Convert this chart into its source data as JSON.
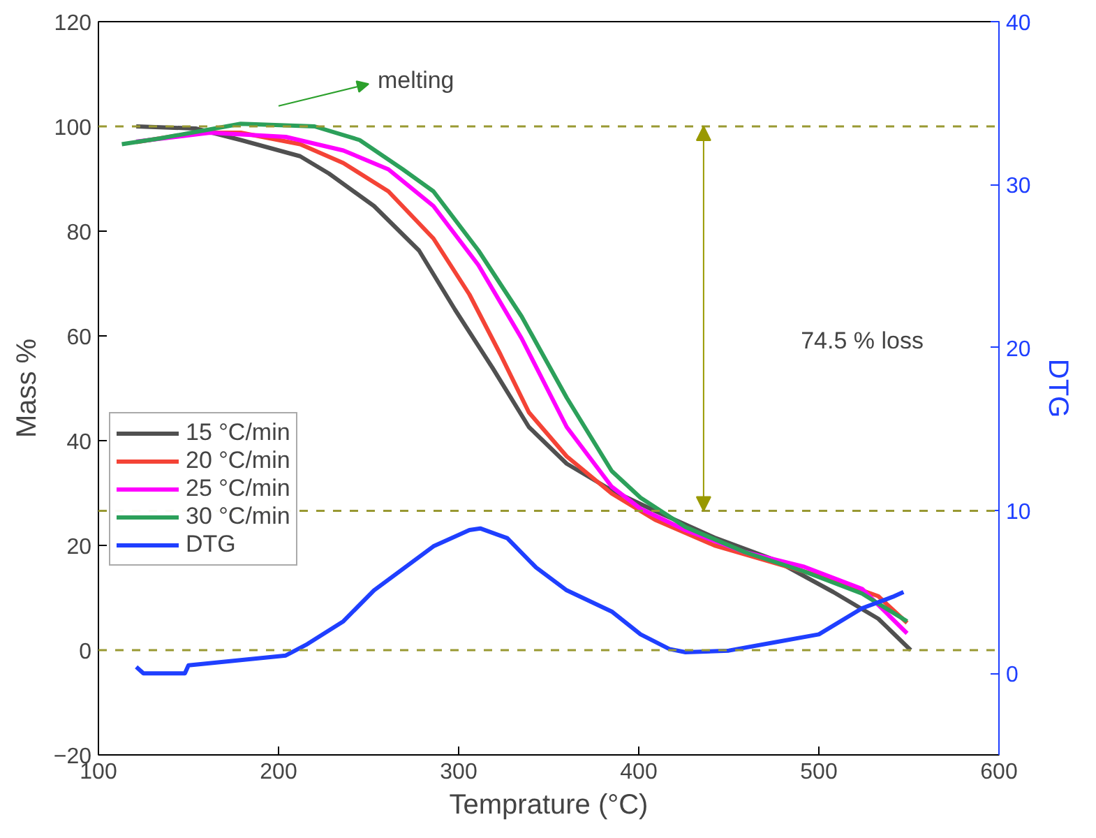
{
  "chart_data": {
    "type": "line",
    "xlabel": "Temprature (°C)",
    "ylabel": "Mass %",
    "y2label": "DTG",
    "xlim": [
      100,
      600
    ],
    "xticks": [
      100,
      200,
      300,
      400,
      500,
      600
    ],
    "ylim": [
      -20,
      120
    ],
    "yticks": [
      -20,
      0,
      20,
      40,
      60,
      80,
      100,
      120
    ],
    "y2lim": [
      -5,
      40
    ],
    "y2ticks": [
      0,
      10,
      20,
      30,
      40
    ],
    "grid": false,
    "legend": "left",
    "line_style": "solid",
    "marker": "none",
    "series": [
      {
        "name": "15 °C/min",
        "color": "#505050",
        "x": [
          121,
          154,
          179,
          212,
          228,
          253,
          278,
          298,
          319,
          339,
          360,
          385,
          409,
          442,
          475,
          508,
          533,
          551
        ],
        "values": [
          100,
          99.6,
          97.4,
          94.3,
          91,
          84.8,
          76.3,
          65,
          53.8,
          42.6,
          35.6,
          30.5,
          26.6,
          21.5,
          17.3,
          11.1,
          6,
          0
        ]
      },
      {
        "name": "20 °C/min",
        "color": "#f44336",
        "x": [
          121,
          154,
          179,
          212,
          236,
          261,
          286,
          306,
          323,
          339,
          360,
          385,
          409,
          442,
          475,
          508,
          533,
          549
        ],
        "values": [
          97,
          98.8,
          98.8,
          96.6,
          93,
          87.6,
          78.6,
          67.9,
          56.6,
          45.4,
          37,
          29.9,
          24.9,
          20,
          16.7,
          13.4,
          10.3,
          5.2
        ]
      },
      {
        "name": "25 °C/min",
        "color": "#ff00ff",
        "x": [
          121,
          162,
          204,
          236,
          261,
          286,
          311,
          335,
          360,
          385,
          401,
          426,
          459,
          492,
          524,
          549
        ],
        "values": [
          97.1,
          98.8,
          98,
          95.4,
          91.8,
          84.8,
          73.5,
          59.5,
          42.6,
          31.2,
          27,
          22.9,
          18.7,
          15.9,
          11.7,
          3.2
        ]
      },
      {
        "name": "30 °C/min",
        "color": "#2ca05a",
        "x": [
          113,
          134,
          179,
          220,
          245,
          269,
          286,
          311,
          335,
          360,
          385,
          401,
          426,
          459,
          492,
          524,
          549
        ],
        "values": [
          96.6,
          97.7,
          100.5,
          100,
          97.4,
          91.8,
          87.6,
          76.3,
          63.7,
          48.2,
          34.2,
          29.1,
          23.5,
          18.7,
          15,
          10.8,
          5.5
        ]
      },
      {
        "name": "DTG",
        "color": "#1f3fff",
        "axis": "y2",
        "x": [
          121,
          125,
          148,
          150,
          204,
          216,
          236,
          253,
          286,
          306,
          312,
          327,
          343,
          360,
          385,
          401,
          417,
          426,
          450,
          475,
          500,
          524,
          541,
          547
        ],
        "values": [
          0.4,
          0,
          0,
          0.5,
          1.1,
          1.8,
          3.2,
          5.1,
          7.8,
          8.8,
          8.9,
          8.3,
          6.5,
          5.1,
          3.8,
          2.4,
          1.5,
          1.3,
          1.4,
          1.9,
          2.4,
          4,
          4.7,
          5
        ]
      }
    ],
    "ref_lines": [
      {
        "axis": "y",
        "value": 100,
        "color": "#999933",
        "line_style": "dashed"
      },
      {
        "axis": "y",
        "value": 26.6,
        "color": "#999933",
        "line_style": "dashed"
      },
      {
        "axis": "y",
        "value": 0,
        "color": "#999933",
        "line_style": "dashed"
      }
    ],
    "annotations": [
      "melting",
      "74.5 % loss"
    ]
  }
}
